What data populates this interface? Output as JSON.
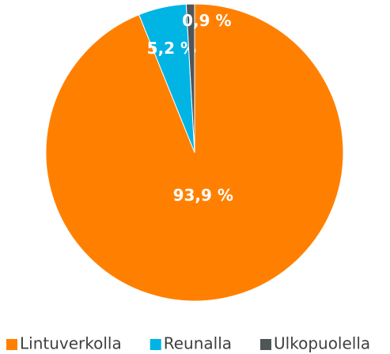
{
  "chart_data": {
    "type": "pie",
    "categories": [
      "Lintuverkolla",
      "Reunalla",
      "Ulkopuolella"
    ],
    "values": [
      93.9,
      5.2,
      0.9
    ],
    "value_labels": [
      "93,9 %",
      "5,2 %",
      "0,9 %"
    ],
    "colors": [
      "#ff8000",
      "#00b4e4",
      "#505558"
    ],
    "legend": "bottom"
  }
}
